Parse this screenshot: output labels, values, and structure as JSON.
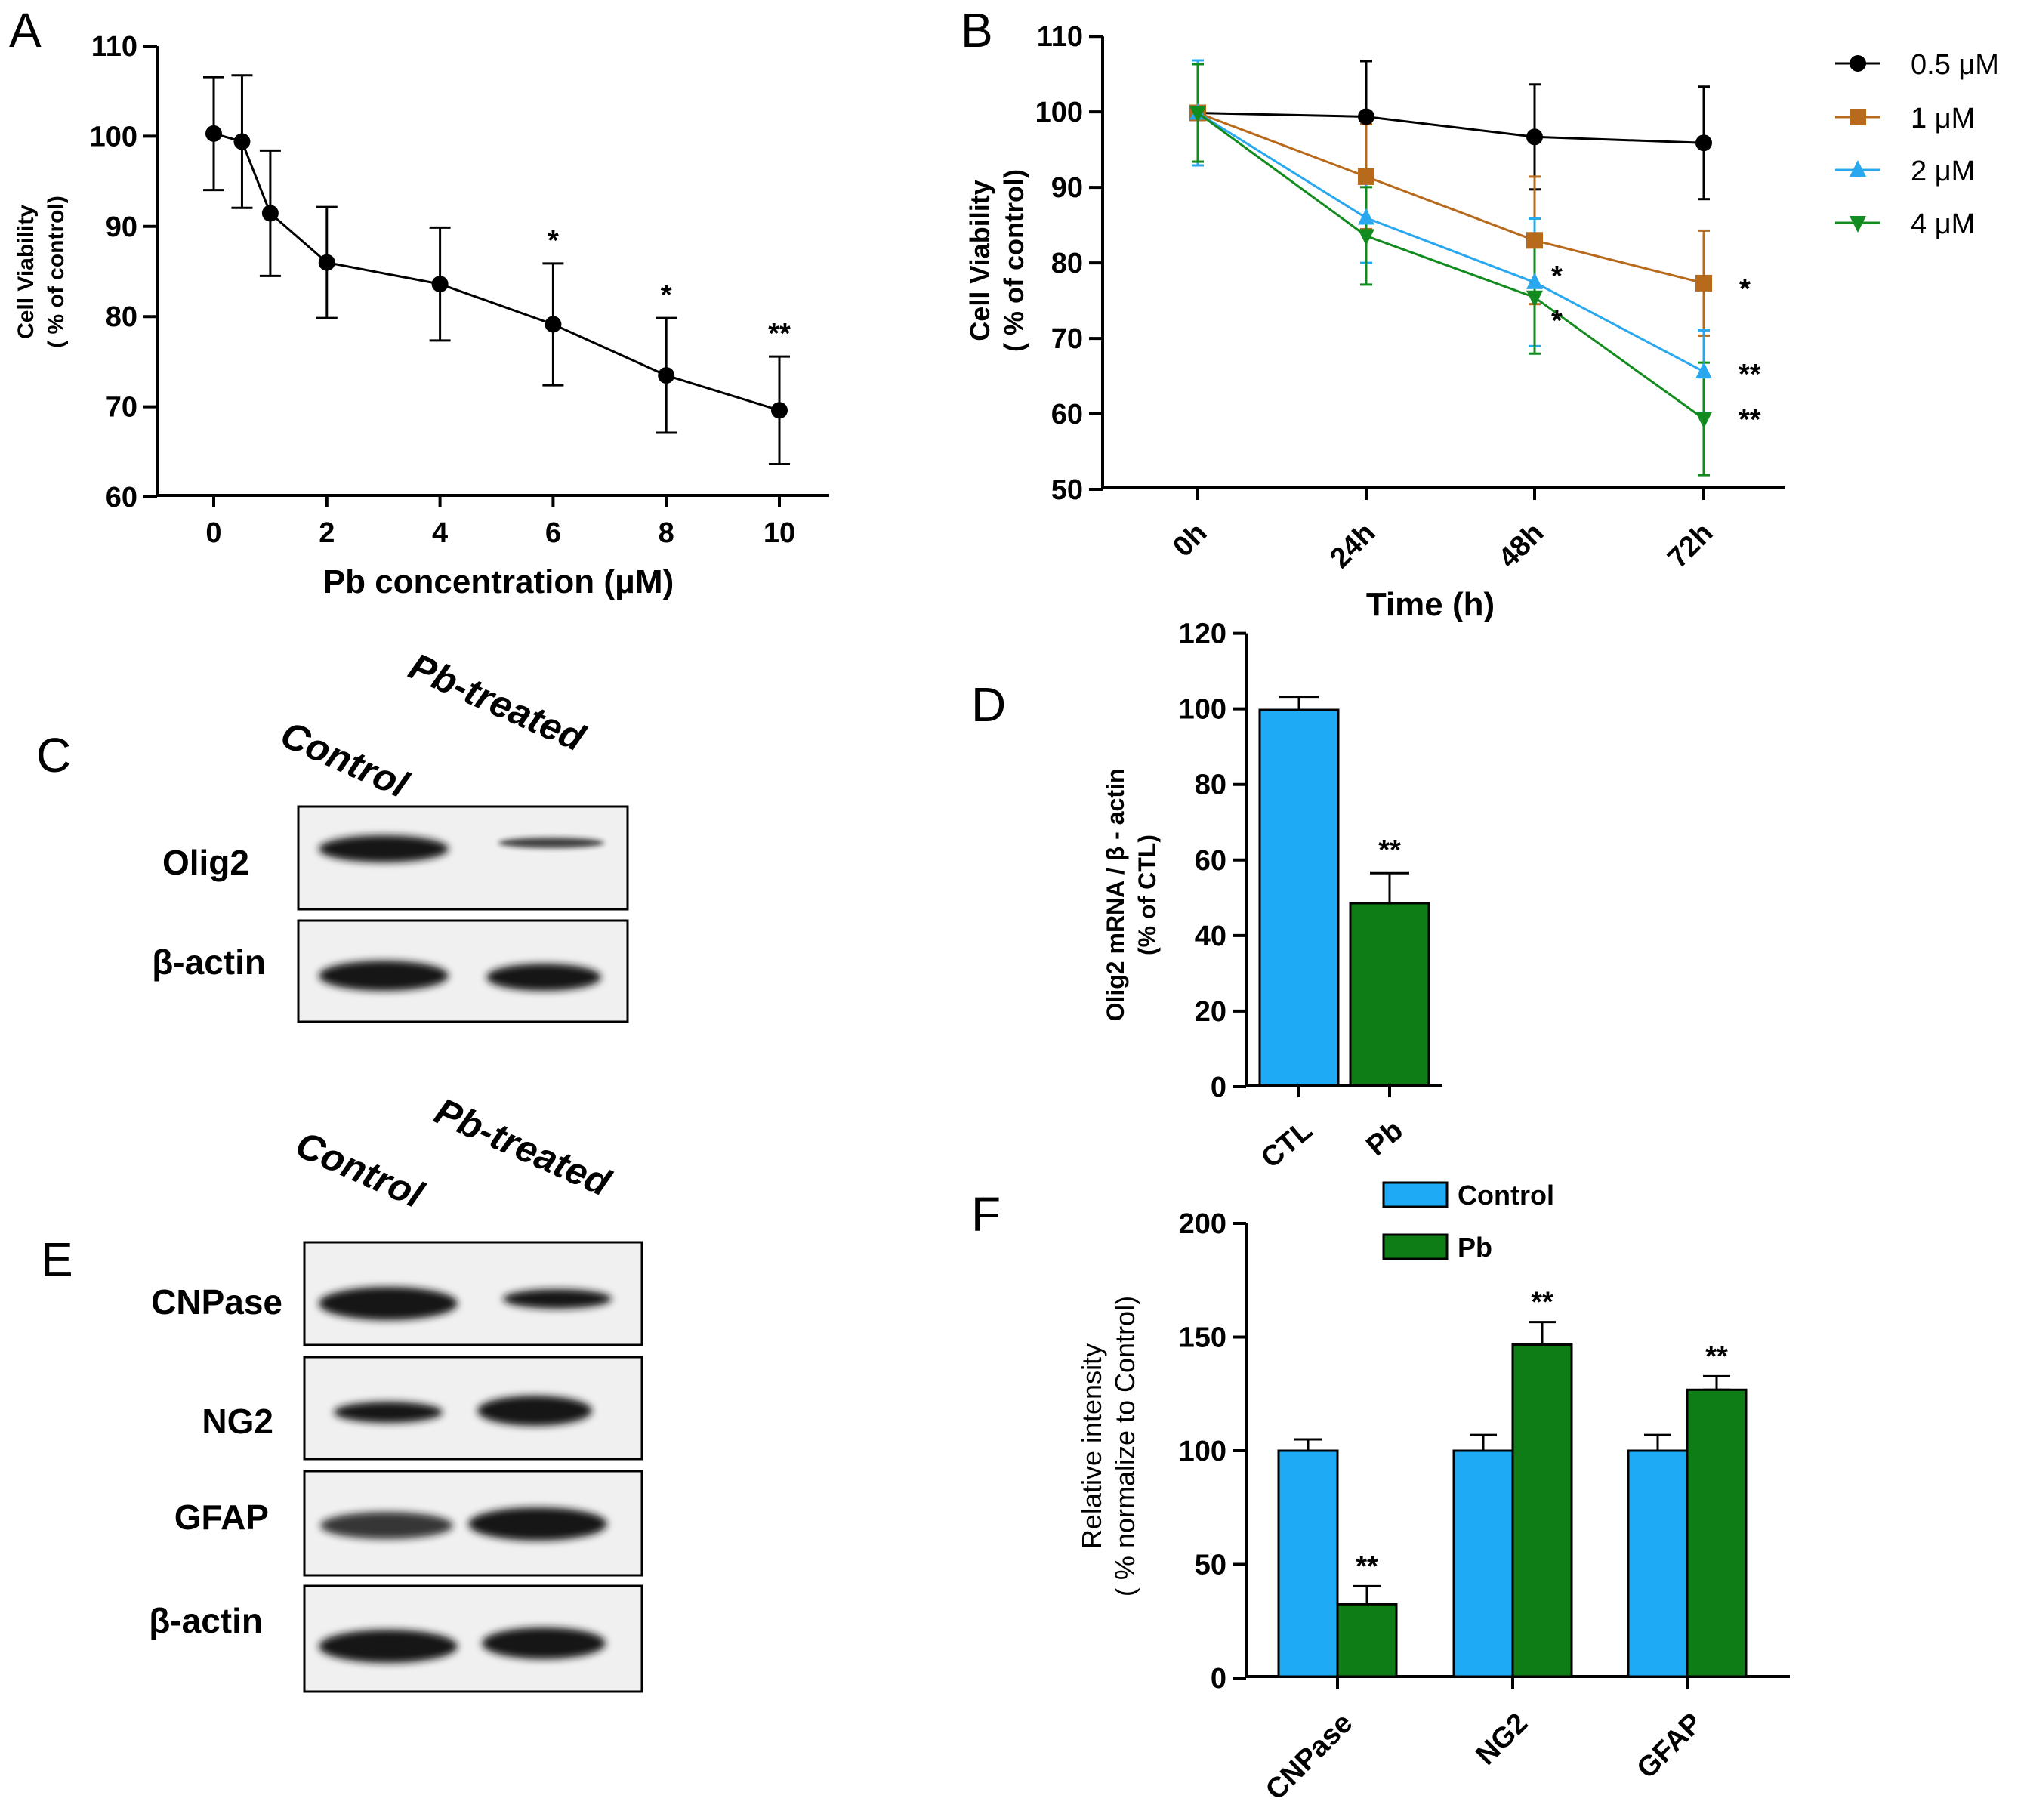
{
  "panels": {
    "A": {
      "letter": "A"
    },
    "B": {
      "letter": "B"
    },
    "C": {
      "letter": "C"
    },
    "D": {
      "letter": "D"
    },
    "E": {
      "letter": "E"
    },
    "F": {
      "letter": "F"
    }
  },
  "colors": {
    "black": "#000000",
    "brown": "#b86a1c",
    "lightblue": "#2aa8ef",
    "green": "#128c1e",
    "bar_blue": "#1faaf5",
    "bar_green": "#0f7d16"
  },
  "chart_data": [
    {
      "id": "A",
      "type": "line",
      "xlabel": "Pb concentration (μM)",
      "ylabel_line1": "Cell Viability",
      "ylabel_line2": "( % of control)",
      "ylim": [
        60,
        110
      ],
      "yticks": [
        "60",
        "70",
        "80",
        "90",
        "100",
        "110"
      ],
      "xticks": [
        "0",
        "2",
        "4",
        "6",
        "8",
        "10"
      ],
      "x": [
        0,
        0.5,
        1,
        2,
        4,
        6,
        8,
        10
      ],
      "values": [
        100.4,
        99.5,
        91.5,
        86.0,
        83.6,
        79.1,
        73.4,
        69.5
      ],
      "errors": [
        6.3,
        7.4,
        7.0,
        6.2,
        6.3,
        6.8,
        6.4,
        6.0
      ],
      "significance": [
        "",
        "",
        "",
        "",
        "",
        "*",
        "*",
        "**"
      ]
    },
    {
      "id": "B",
      "type": "line",
      "xlabel": "Time (h)",
      "ylabel_line1": "Cell Viability",
      "ylabel_line2": "( % of control)",
      "ylim": [
        50,
        110
      ],
      "yticks": [
        "50",
        "60",
        "70",
        "80",
        "90",
        "100",
        "110"
      ],
      "categories": [
        "0h",
        "24h",
        "48h",
        "72h"
      ],
      "series": [
        {
          "name": "0.5 μM",
          "marker": "circle",
          "color": "#000000",
          "values": [
            100,
            99.5,
            96.8,
            96.0
          ],
          "errors": [
            7.0,
            7.4,
            7.0,
            7.5
          ],
          "significance": [
            "",
            "",
            "",
            ""
          ]
        },
        {
          "name": "1 μM",
          "marker": "square",
          "color": "#b86a1c",
          "values": [
            100,
            91.5,
            83.0,
            77.3
          ],
          "errors": [
            6.5,
            7.0,
            8.5,
            7.0
          ],
          "significance": [
            "",
            "",
            "",
            "*"
          ]
        },
        {
          "name": "2 μM",
          "marker": "triangle",
          "color": "#2aa8ef",
          "values": [
            100,
            86.0,
            77.4,
            65.5
          ],
          "errors": [
            7.0,
            6.0,
            8.5,
            5.5
          ],
          "significance": [
            "",
            "",
            "*",
            "**"
          ]
        },
        {
          "name": "4 μM",
          "marker": "triangle-down",
          "color": "#128c1e",
          "values": [
            100,
            83.6,
            75.4,
            59.2
          ],
          "errors": [
            6.5,
            6.5,
            7.5,
            7.5
          ],
          "significance": [
            "",
            "",
            "*",
            "**"
          ]
        }
      ]
    },
    {
      "id": "D",
      "type": "bar",
      "ylabel_line1": "Olig2 mRNA / β - actin",
      "ylabel_line2": "(% of CTL)",
      "ylim": [
        0,
        120
      ],
      "yticks": [
        "0",
        "20",
        "40",
        "60",
        "80",
        "100",
        "120"
      ],
      "categories": [
        "CTL",
        "Pb"
      ],
      "values": [
        100,
        48.5
      ],
      "errors": [
        3.5,
        8.0
      ],
      "significance": [
        "",
        "**"
      ]
    },
    {
      "id": "F",
      "type": "bar",
      "ylabel_line1": "Relative intensity",
      "ylabel_line2": "( % normalize to Control)",
      "ylim": [
        0,
        200
      ],
      "yticks": [
        "0",
        "50",
        "100",
        "150",
        "200"
      ],
      "categories": [
        "CNPase",
        "NG2",
        "GFAP"
      ],
      "series": [
        {
          "name": "Control",
          "values": [
            100,
            100,
            100
          ],
          "errors": [
            5,
            7,
            7
          ],
          "significance": [
            "",
            "",
            ""
          ]
        },
        {
          "name": "Pb",
          "values": [
            32,
            147,
            127
          ],
          "errors": [
            8,
            10,
            6
          ],
          "significance": [
            "**",
            "**",
            "**"
          ]
        }
      ]
    }
  ],
  "blots": {
    "C": {
      "lanes": [
        "Control",
        "Pb-treated"
      ],
      "proteins": [
        "Olig2",
        "β-actin"
      ]
    },
    "E": {
      "lanes": [
        "Control",
        "Pb-treated"
      ],
      "proteins": [
        "CNPase",
        "NG2",
        "GFAP",
        "β-actin"
      ]
    }
  }
}
